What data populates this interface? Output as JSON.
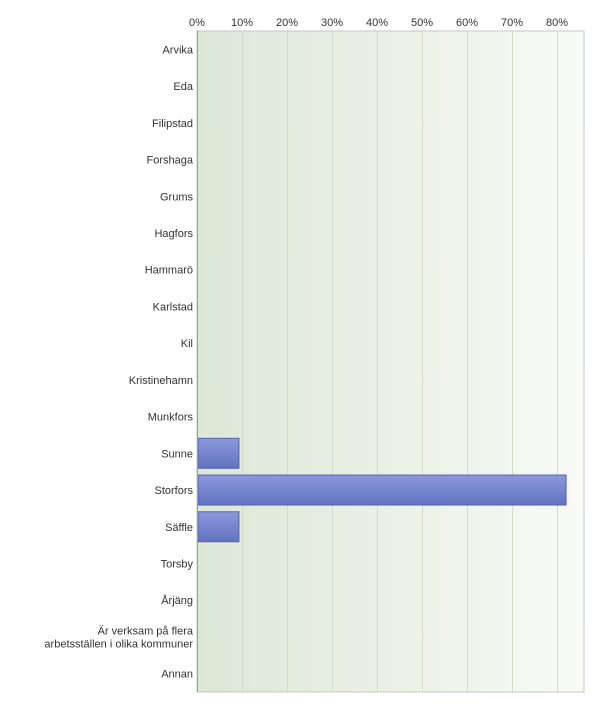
{
  "chart_data": {
    "type": "bar",
    "orientation": "horizontal",
    "categories": [
      "Arvika",
      "Eda",
      "Filipstad",
      "Forshaga",
      "Grums",
      "Hagfors",
      "Hammarö",
      "Karlstad",
      "Kil",
      "Kristinehamn",
      "Munkfors",
      "Sunne",
      "Storfors",
      "Säffle",
      "Torsby",
      "Årjäng",
      "Är verksam på flera arbetsställen i olika kommuner",
      "Annan"
    ],
    "category_lines": [
      [
        "Arvika"
      ],
      [
        "Eda"
      ],
      [
        "Filipstad"
      ],
      [
        "Forshaga"
      ],
      [
        "Grums"
      ],
      [
        "Hagfors"
      ],
      [
        "Hammarö"
      ],
      [
        "Karlstad"
      ],
      [
        "Kil"
      ],
      [
        "Kristinehamn"
      ],
      [
        "Munkfors"
      ],
      [
        "Sunne"
      ],
      [
        "Storfors"
      ],
      [
        "Säffle"
      ],
      [
        "Torsby"
      ],
      [
        "Årjäng"
      ],
      [
        "Är verksam på flera",
        "arbetsställen i olika kommuner"
      ],
      [
        "Annan"
      ]
    ],
    "values": [
      0,
      0,
      0,
      0,
      0,
      0,
      0,
      0,
      0,
      0,
      0,
      9.1,
      81.8,
      9.1,
      0,
      0,
      0,
      0
    ],
    "xlim": [
      0,
      85
    ],
    "xticks": [
      0,
      10,
      20,
      30,
      40,
      50,
      60,
      70,
      80
    ],
    "xtick_labels": [
      "0%",
      "10%",
      "20%",
      "30%",
      "40%",
      "50%",
      "60%",
      "70%",
      "80%"
    ],
    "tick_position": "top",
    "grid": true,
    "bar_color": "#7080cc"
  }
}
